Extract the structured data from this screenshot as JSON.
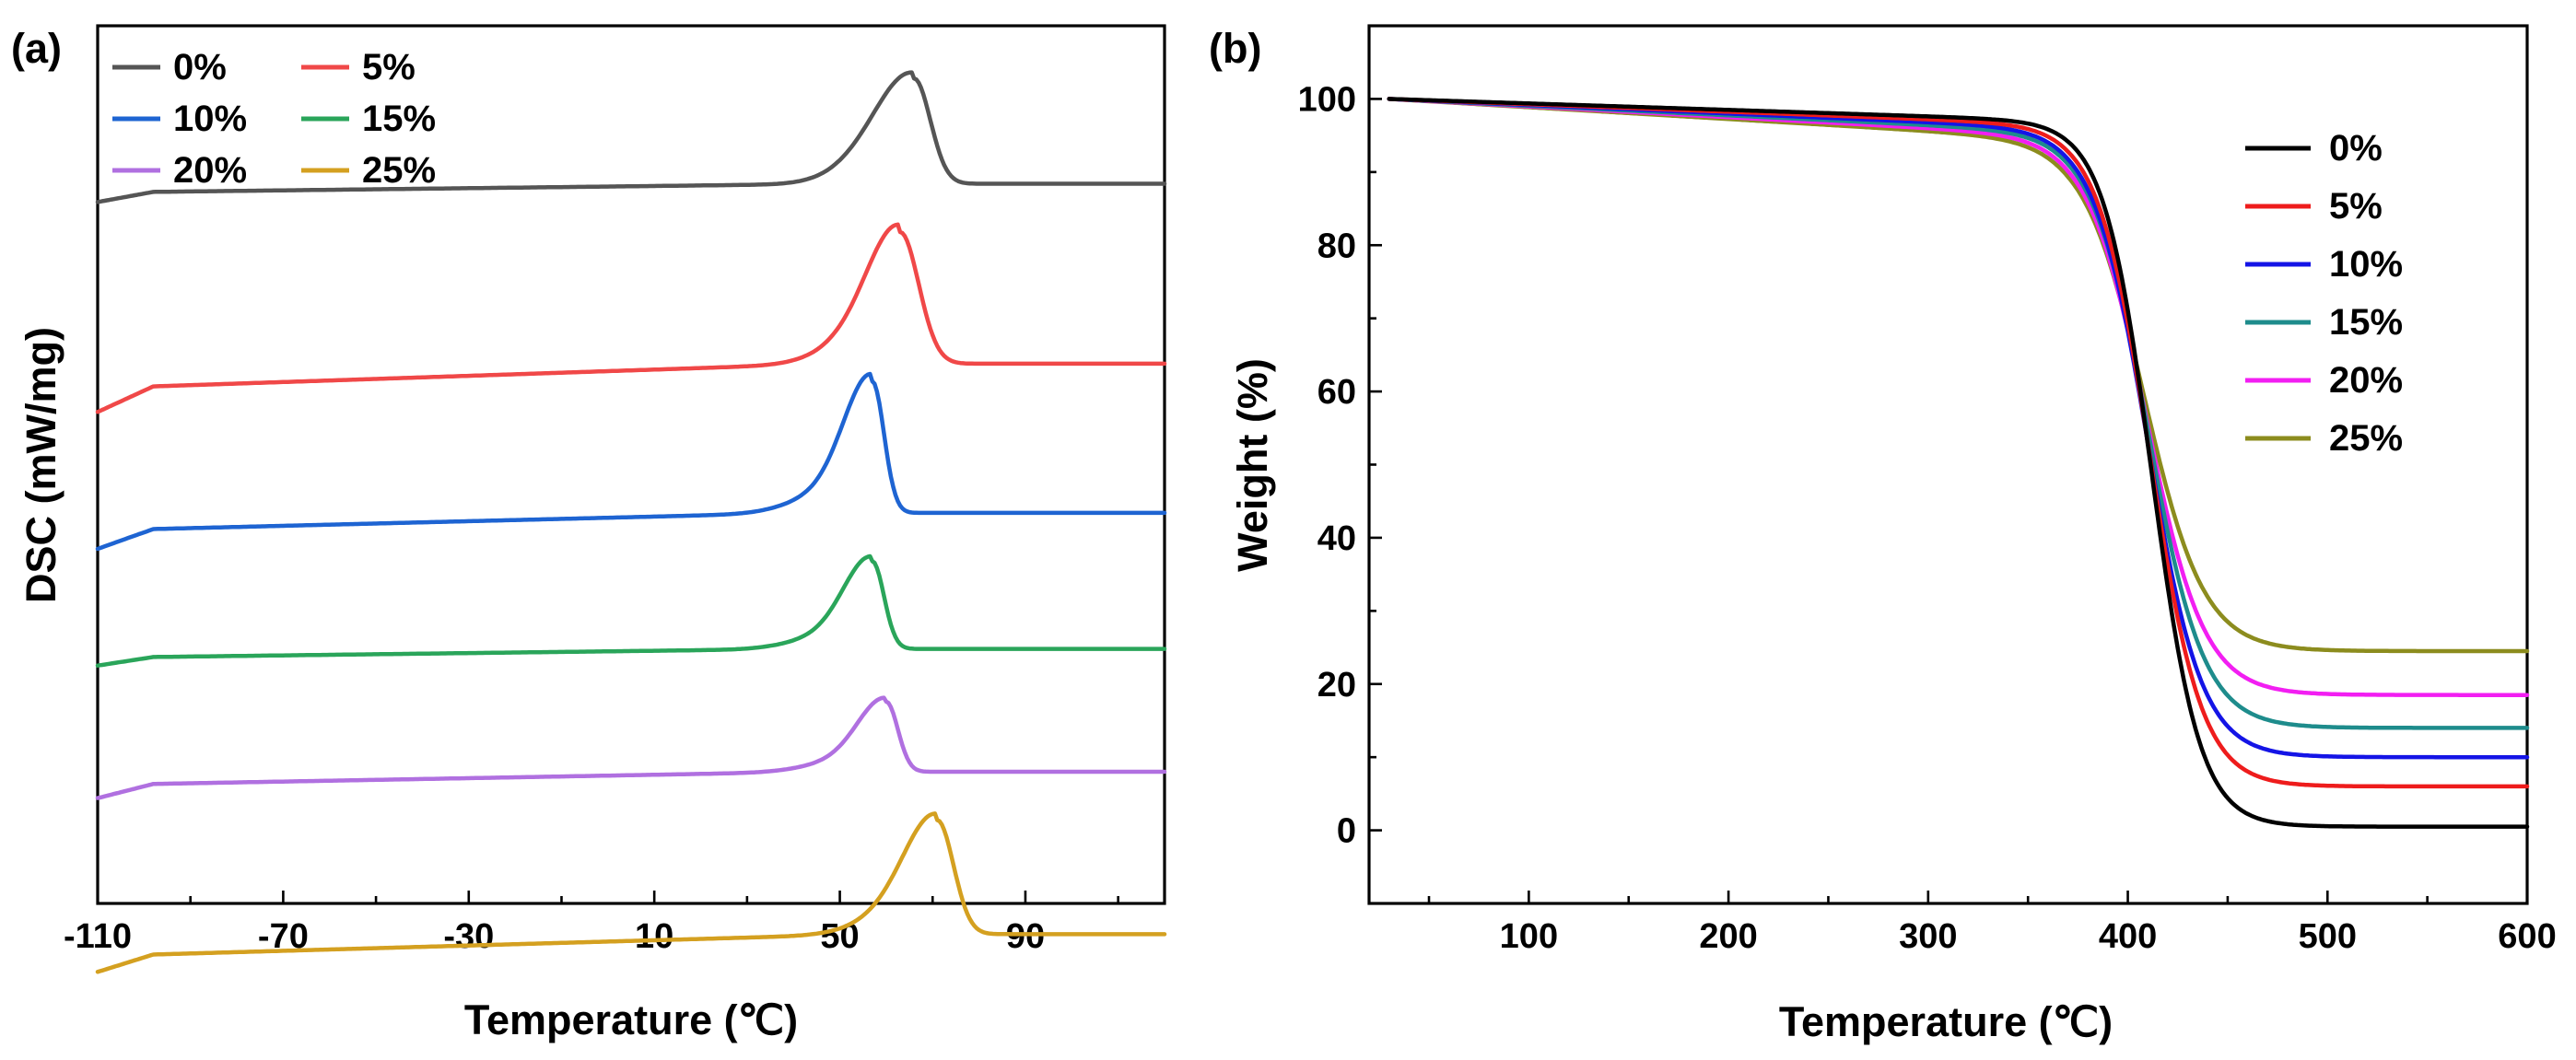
{
  "chart_data": [
    {
      "panel_label": "(a)",
      "type": "line",
      "subtype": "DSC thermograms (vertically offset, arbitrary units)",
      "xlabel": "Temperature (℃)",
      "ylabel": "DSC (mW/mg)",
      "xlim": [
        -110,
        120
      ],
      "xticks": [
        "-110",
        "-70",
        "-30",
        "10",
        "50",
        "90"
      ],
      "xtick_values": [
        -110,
        -70,
        -30,
        10,
        50,
        90
      ],
      "ylim": [
        0,
        100
      ],
      "legend_position": "top-left",
      "series": [
        {
          "name": "0%",
          "color": "#555555",
          "baseline": 82,
          "start_offset": -1.8,
          "slope_rise": 1.0,
          "peak_x": 66,
          "peak_height": 12,
          "peak_left_width": 8,
          "peak_right_width": 3.5
        },
        {
          "name": "5%",
          "color": "#f04848",
          "baseline": 61.5,
          "start_offset": -4.5,
          "slope_rise": 2.8,
          "peak_x": 63,
          "peak_height": 15,
          "peak_left_width": 7,
          "peak_right_width": 4
        },
        {
          "name": "10%",
          "color": "#1e64d2",
          "baseline": 44.5,
          "start_offset": -3.5,
          "slope_rise": 2.0,
          "peak_x": 57,
          "peak_height": 15,
          "peak_left_width": 6,
          "peak_right_width": 2.5
        },
        {
          "name": "15%",
          "color": "#2aa55a",
          "baseline": 29,
          "start_offset": -1.5,
          "slope_rise": 1.0,
          "peak_x": 57,
          "peak_height": 10,
          "peak_left_width": 6,
          "peak_right_width": 2.5
        },
        {
          "name": "20%",
          "color": "#b070e0",
          "baseline": 15,
          "start_offset": -2.5,
          "slope_rise": 1.5,
          "peak_x": 60,
          "peak_height": 8,
          "peak_left_width": 6,
          "peak_right_width": 2.5
        },
        {
          "name": "25%",
          "color": "#d4a020",
          "baseline": -3.5,
          "start_offset": -3.0,
          "slope_rise": 2.5,
          "peak_x": 71,
          "peak_height": 13,
          "peak_left_width": 7,
          "peak_right_width": 3.5
        }
      ]
    },
    {
      "panel_label": "(b)",
      "type": "line",
      "subtype": "TGA curves",
      "xlabel": "Temperature (℃)",
      "ylabel": "Weight (%)",
      "xlim": [
        20,
        600
      ],
      "ylim": [
        -10,
        110
      ],
      "xticks": [
        "100",
        "200",
        "300",
        "400",
        "500",
        "600"
      ],
      "xtick_values": [
        100,
        200,
        300,
        400,
        500,
        600
      ],
      "yticks": [
        "0",
        "20",
        "40",
        "60",
        "80",
        "100"
      ],
      "ytick_values": [
        0,
        20,
        40,
        60,
        80,
        100
      ],
      "legend_position": "right",
      "series": [
        {
          "name": "0%",
          "color": "#000000",
          "residue": 0.5,
          "onset_drop": 3.0,
          "midpoint": 412,
          "steepness": 12.0
        },
        {
          "name": "5%",
          "color": "#ee1c1c",
          "residue": 6.0,
          "onset_drop": 3.5,
          "midpoint": 411,
          "steepness": 13.0
        },
        {
          "name": "10%",
          "color": "#1414e6",
          "residue": 10.0,
          "onset_drop": 4.0,
          "midpoint": 410,
          "steepness": 13.5
        },
        {
          "name": "15%",
          "color": "#1e8c8c",
          "residue": 14.0,
          "onset_drop": 4.5,
          "midpoint": 410,
          "steepness": 14.0
        },
        {
          "name": "20%",
          "color": "#f21ef2",
          "residue": 18.5,
          "onset_drop": 5.0,
          "midpoint": 409,
          "steepness": 14.5
        },
        {
          "name": "25%",
          "color": "#8c8c1e",
          "residue": 24.5,
          "onset_drop": 5.5,
          "midpoint": 408,
          "steepness": 15.0
        }
      ]
    }
  ]
}
